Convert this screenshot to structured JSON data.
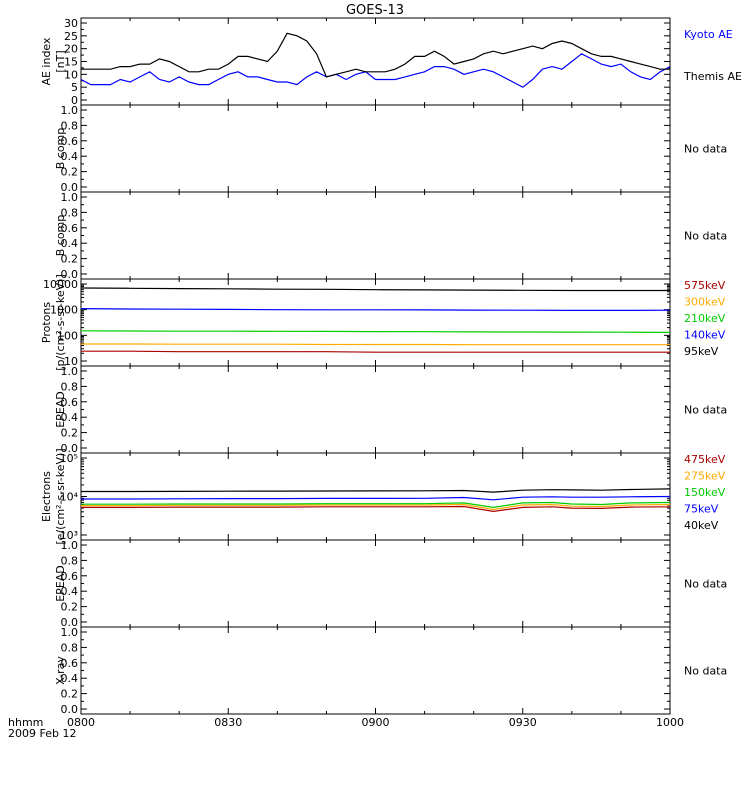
{
  "title": "GOES-13",
  "footer": {
    "time_label": "hhmm",
    "date_label": "2009 Feb 12"
  },
  "x_ticks": [
    "0800",
    "0830",
    "0900",
    "0930",
    "1000"
  ],
  "colors": {
    "black": "#000000",
    "blue": "#0000ff",
    "green": "#00cc00",
    "orange": "#ffaa00",
    "red": "#aa0000"
  },
  "chart_data": [
    {
      "type": "line",
      "ylabel": [
        "AE index",
        "[nT]"
      ],
      "ylim": [
        0,
        30
      ],
      "yticks": [
        "0",
        "5",
        "10",
        "15",
        "20",
        "25",
        "30"
      ],
      "x_minutes": [
        0,
        2,
        4,
        6,
        8,
        10,
        12,
        14,
        16,
        18,
        20,
        22,
        24,
        26,
        28,
        30,
        32,
        34,
        36,
        38,
        40,
        42,
        44,
        46,
        48,
        50,
        52,
        54,
        56,
        58,
        60,
        62,
        64,
        66,
        68,
        70,
        72,
        74,
        76,
        78,
        80,
        82,
        84,
        86,
        88,
        90,
        92,
        94,
        96,
        98,
        100,
        102,
        104,
        106,
        108,
        110,
        112,
        114,
        116,
        118,
        120
      ],
      "series": [
        {
          "name": "Kyoto AE",
          "color": "#0000ff",
          "values": [
            8,
            6,
            6,
            6,
            8,
            7,
            9,
            11,
            8,
            7,
            9,
            7,
            6,
            6,
            8,
            10,
            11,
            9,
            9,
            8,
            7,
            7,
            6,
            9,
            11,
            9,
            10,
            8,
            10,
            11,
            8,
            8,
            8,
            9,
            10,
            11,
            13,
            13,
            12,
            10,
            11,
            12,
            11,
            9,
            7,
            5,
            8,
            12,
            13,
            12,
            15,
            18,
            16,
            14,
            13,
            14,
            11,
            9,
            8,
            11,
            13
          ]
        },
        {
          "name": "Themis AE",
          "color": "#000000",
          "values": [
            12,
            12,
            12,
            12,
            13,
            13,
            14,
            14,
            16,
            15,
            13,
            11,
            11,
            12,
            12,
            14,
            17,
            17,
            16,
            15,
            19,
            26,
            25,
            23,
            18,
            9,
            10,
            11,
            12,
            11,
            11,
            11,
            12,
            14,
            17,
            17,
            19,
            17,
            14,
            15,
            16,
            18,
            19,
            18,
            19,
            20,
            21,
            20,
            22,
            23,
            22,
            20,
            18,
            17,
            17,
            16,
            15,
            14,
            13,
            12,
            12
          ]
        }
      ]
    },
    {
      "type": "line",
      "ylabel": [
        "B comp"
      ],
      "ylim": [
        0,
        1
      ],
      "yticks": [
        "0.0",
        "0.2",
        "0.4",
        "0.6",
        "0.8",
        "1.0"
      ],
      "note": "No data",
      "series": []
    },
    {
      "type": "line",
      "ylabel": [
        "B comp"
      ],
      "ylim": [
        0,
        1
      ],
      "yticks": [
        "0.0",
        "0.2",
        "0.4",
        "0.6",
        "0.8",
        "1.0"
      ],
      "note": "No data",
      "series": []
    },
    {
      "type": "line",
      "ylabel": [
        "Protons",
        "[p/(cm²-s-sr-keV)]"
      ],
      "yscale": "log",
      "ylim": [
        10,
        10000
      ],
      "yticks": [
        "10",
        "100",
        "1000",
        "10000"
      ],
      "x_minutes": [
        0,
        10,
        20,
        30,
        40,
        50,
        60,
        70,
        80,
        90,
        100,
        110,
        120
      ],
      "series": [
        {
          "name": "575keV",
          "color": "#aa0000",
          "values": [
            null,
            null,
            null,
            null,
            null,
            null,
            null,
            null,
            null,
            null,
            null,
            null,
            null
          ]
        },
        {
          "name": "300keV",
          "color": "#ffaa00",
          "values": [
            null,
            null,
            null,
            null,
            null,
            null,
            null,
            null,
            null,
            null,
            null,
            null,
            null
          ]
        },
        {
          "name": "210keV",
          "color": "#00cc00",
          "values": [
            150,
            148,
            145,
            145,
            143,
            142,
            140,
            138,
            136,
            135,
            134,
            132,
            130
          ]
        },
        {
          "name": "140keV",
          "color": "#0000ff",
          "values": [
            1100,
            1060,
            1040,
            1020,
            1000,
            990,
            985,
            980,
            960,
            950,
            940,
            940,
            950
          ]
        },
        {
          "name": "95keV",
          "color": "#000000",
          "values": [
            7000,
            6800,
            6600,
            6500,
            6300,
            6200,
            6000,
            5900,
            5800,
            5700,
            5600,
            5600,
            5600
          ]
        },
        {
          "name": "",
          "color": "#ffaa00",
          "values": [
            46,
            46,
            45,
            45,
            45,
            44,
            44,
            44,
            43,
            43,
            43,
            43,
            43
          ]
        },
        {
          "name": "",
          "color": "#aa0000",
          "values": [
            24,
            24,
            23,
            23,
            23,
            23,
            22,
            22,
            22,
            22,
            22,
            22,
            22
          ]
        }
      ]
    },
    {
      "type": "line",
      "ylabel": [
        "EPEAD"
      ],
      "ylim": [
        0,
        1
      ],
      "yticks": [
        "0.0",
        "0.2",
        "0.4",
        "0.6",
        "0.8",
        "1.0"
      ],
      "note": "No data",
      "series": []
    },
    {
      "type": "line",
      "ylabel": [
        "Electrons",
        "[e/(cm²-s-sr-keV)]"
      ],
      "yscale": "log",
      "ylim": [
        1000,
        100000
      ],
      "yticks": [
        "10³",
        "10⁴",
        "10⁵"
      ],
      "x_minutes": [
        0,
        10,
        20,
        30,
        40,
        50,
        60,
        70,
        78,
        84,
        90,
        96,
        100,
        106,
        112,
        120
      ],
      "series": [
        {
          "name": "475keV",
          "color": "#aa0000",
          "values": [
            5200,
            5200,
            5300,
            5300,
            5300,
            5400,
            5400,
            5400,
            5500,
            4100,
            5200,
            5400,
            5000,
            4900,
            5300,
            5400
          ]
        },
        {
          "name": "275keV",
          "color": "#ffaa00",
          "values": [
            5800,
            5800,
            5900,
            5900,
            5900,
            6000,
            6000,
            6000,
            6200,
            4600,
            6000,
            6200,
            5600,
            5500,
            6000,
            6200
          ]
        },
        {
          "name": "150keV",
          "color": "#00cc00",
          "values": [
            6300,
            6300,
            6400,
            6400,
            6400,
            6500,
            6500,
            6500,
            6800,
            5200,
            6800,
            7000,
            6400,
            6200,
            6800,
            7000
          ]
        },
        {
          "name": "75keV",
          "color": "#0000ff",
          "values": [
            8600,
            8600,
            8700,
            8800,
            8800,
            8900,
            8900,
            9000,
            9400,
            8200,
            9600,
            9800,
            9600,
            9600,
            9800,
            10000
          ]
        },
        {
          "name": "40keV",
          "color": "#000000",
          "values": [
            13500,
            13500,
            13600,
            13700,
            13800,
            13900,
            14000,
            14100,
            14300,
            13000,
            14600,
            15000,
            14800,
            14600,
            15200,
            15800
          ]
        }
      ]
    },
    {
      "type": "line",
      "ylabel": [
        "EPEAD"
      ],
      "ylim": [
        0,
        1
      ],
      "yticks": [
        "0.0",
        "0.2",
        "0.4",
        "0.6",
        "0.8",
        "1.0"
      ],
      "note": "No data",
      "series": []
    },
    {
      "type": "line",
      "ylabel": [
        "X-ray"
      ],
      "ylim": [
        0,
        1
      ],
      "yticks": [
        "0.0",
        "0.2",
        "0.4",
        "0.6",
        "0.8",
        "1.0"
      ],
      "note": "No data",
      "series": []
    }
  ]
}
